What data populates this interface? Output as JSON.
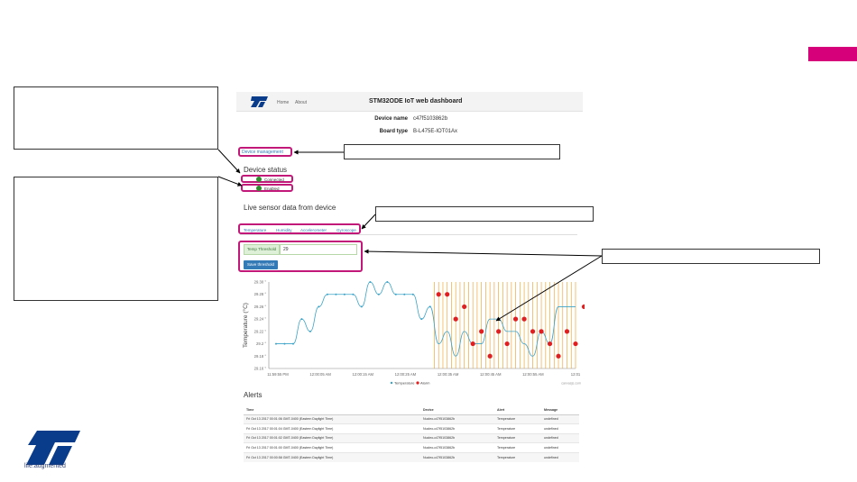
{
  "dashboard": {
    "nav": {
      "home": "Home",
      "about": "About"
    },
    "title": "STM32ODE IoT web dashboard",
    "device_name_label": "Device name",
    "device_name_value": "c47f5103862b",
    "board_type_label": "Board type",
    "board_type_value": "B-L475E-IOT01Ax",
    "device_management_link": "Device management",
    "device_status_title": "Device status",
    "status_connected": "Connected",
    "status_enabled": "Enabled",
    "live_title": "Live sensor data from device",
    "tabs": [
      "Temperature",
      "Humidity",
      "Accelerometer",
      "Gyroscope"
    ],
    "threshold_label": "Temp Threshold",
    "threshold_value": "29",
    "save_button": "Save threshold",
    "alerts_title": "Alerts",
    "alerts_columns": [
      "Time",
      "Device",
      "Alert",
      "Message"
    ],
    "alerts_rows": [
      [
        "Fri Oct 13 2017 00:01:06 GMT-0400 (Eastern Daylight Time)",
        "Nucleo-c47f5103862b",
        "Temperature",
        "undefined"
      ],
      [
        "Fri Oct 13 2017 00:01:04 GMT-0400 (Eastern Daylight Time)",
        "Nucleo-c47f5103862b",
        "Temperature",
        "undefined"
      ],
      [
        "Fri Oct 13 2017 00:01:02 GMT-0400 (Eastern Daylight Time)",
        "Nucleo-c47f5103862b",
        "Temperature",
        "undefined"
      ],
      [
        "Fri Oct 13 2017 00:01:00 GMT-0400 (Eastern Daylight Time)",
        "Nucleo-c47f5103862b",
        "Temperature",
        "undefined"
      ],
      [
        "Fri Oct 13 2017 00:00:58 GMT-0400 (Eastern Daylight Time)",
        "Nucleo-c47f5103862b",
        "Temperature",
        "undefined"
      ]
    ]
  },
  "chart_data": {
    "type": "line",
    "ylabel": "Temperature (°C)",
    "y_ticks": [
      "29.30 °",
      "29.28 °",
      "29.26 °",
      "29.24 °",
      "29.22 °",
      "29.2 °",
      "29.18 °",
      "29.16 °"
    ],
    "x_ticks": [
      "11:59:55 PM",
      "12:00:05 AM",
      "12:00:15 AM",
      "12:00:25 AM",
      "12:00:35 AM",
      "12:00:45 AM",
      "12:00:55 AM",
      "12:01"
    ],
    "legend": [
      "Temperature",
      "Alarm"
    ],
    "credit": "canvasjs.com",
    "ylim": [
      29.16,
      29.3
    ],
    "series": [
      {
        "name": "Temperature",
        "values": [
          29.2,
          29.2,
          29.2,
          29.24,
          29.22,
          29.26,
          29.28,
          29.28,
          29.28,
          29.28,
          29.26,
          29.3,
          29.28,
          29.3,
          29.28,
          29.28,
          29.28,
          29.24,
          29.26,
          29.2,
          29.22,
          29.18,
          29.22,
          29.2,
          29.2,
          29.24,
          29.24,
          29.22,
          29.22,
          29.2,
          29.18,
          29.22,
          29.2,
          29.26,
          29.26,
          29.26
        ]
      },
      {
        "name": "Alarm",
        "start_index": 19,
        "values": [
          29.28,
          29.28,
          29.24,
          29.26,
          29.2,
          29.22,
          29.18,
          29.22,
          29.2,
          29.24,
          29.24,
          29.22,
          29.22,
          29.2,
          29.18,
          29.22,
          29.2,
          29.26,
          29.26,
          29.26
        ]
      }
    ],
    "colors": {
      "line": "#3aa3c8",
      "alarm": "#e02020",
      "grid_alarm": "#f2a93b"
    }
  },
  "footer": {
    "tagline": "life.augmented"
  },
  "colors": {
    "accent": "#c2187a",
    "tab": "#d6007a",
    "brand_blue": "#0a3c8c"
  }
}
